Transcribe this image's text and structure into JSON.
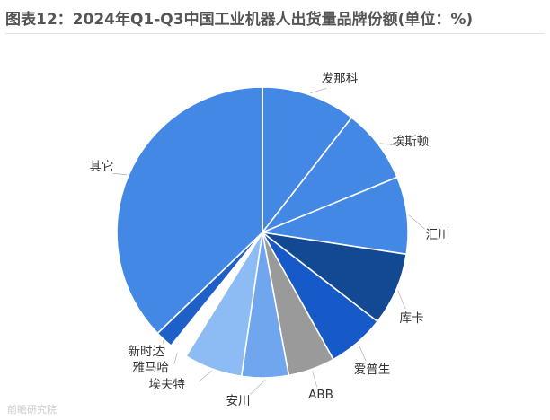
{
  "chart_data": {
    "type": "pie",
    "title": "图表12：2024年Q1-Q3中国工业机器人出货量品牌份额(单位：%)",
    "start_angle_deg": 0,
    "direction": "clockwise",
    "legend": "none",
    "categories": [
      "发那科",
      "埃斯顿",
      "汇川",
      "库卡",
      "爱普生",
      "ABB",
      "安川",
      "埃夫特",
      "雅马哈",
      "新时达",
      "其它"
    ],
    "values": [
      10.5,
      8.3,
      8.6,
      8.1,
      6.4,
      5.2,
      5.2,
      6.5,
      2.0,
      2.0,
      37.2
    ],
    "colors": [
      "#4488E6",
      "#4488E6",
      "#4488E6",
      "#134893",
      "#1659C9",
      "#9A9A9A",
      "#6FA6EE",
      "#8DBCF5",
      "#FFFFFF",
      "#1E5FC8",
      "#4488E6"
    ]
  },
  "watermark": "前瞻研究院"
}
